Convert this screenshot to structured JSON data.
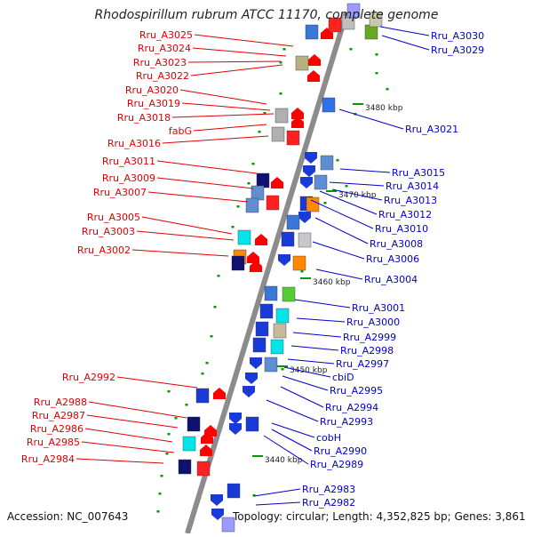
{
  "title": "Rhodospirillum rubrum ATCC 11170, complete genome",
  "accession": "Accession: NC_007643",
  "topology": "Topology: circular; Length: 4,352,825 bp; Genes: 3,861",
  "colors": {
    "left_label": "#e00000",
    "right_label": "#0000cc",
    "backbone": "#8c8c8c",
    "tick": "#009900"
  },
  "ruler": [
    "3480 kbp",
    "3470 kbp",
    "3460 kbp",
    "3450 kbp",
    "3440 kbp"
  ],
  "left_labels": [
    "Rru_A3025",
    "Rru_A3024",
    "Rru_A3023",
    "Rru_A3022",
    "Rru_A3020",
    "Rru_A3019",
    "Rru_A3018",
    "fabG",
    "Rru_A3016",
    "Rru_A3011",
    "Rru_A3009",
    "Rru_A3007",
    "Rru_A3005",
    "Rru_A3003",
    "Rru_A3002",
    "Rru_A2992",
    "Rru_A2988",
    "Rru_A2987",
    "Rru_A2986",
    "Rru_A2985",
    "Rru_A2984"
  ],
  "right_labels": [
    "Rru_A3030",
    "Rru_A3029",
    "Rru_A3021",
    "Rru_A3015",
    "Rru_A3014",
    "Rru_A3013",
    "Rru_A3012",
    "Rru_A3010",
    "Rru_A3008",
    "Rru_A3006",
    "Rru_A3004",
    "Rru_A3001",
    "Rru_A3000",
    "Rru_A2999",
    "Rru_A2998",
    "Rru_A2997",
    "cbiD",
    "Rru_A2995",
    "Rru_A2994",
    "Rru_A2993",
    "cobH",
    "Rru_A2990",
    "Rru_A2989",
    "Rru_A2983",
    "Rru_A2982"
  ]
}
